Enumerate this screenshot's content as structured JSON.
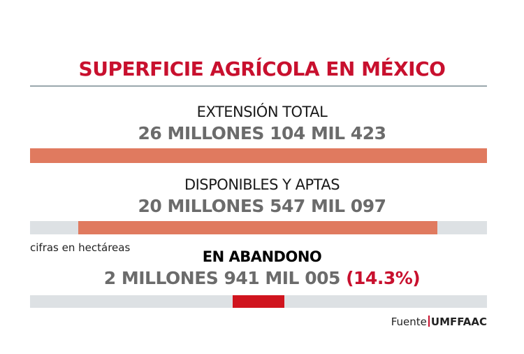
{
  "title": "SUPERFICIE AGRÍCOLA EN MÉXICO",
  "colors": {
    "title": "#c8102e",
    "bar": "#e07a5f",
    "highlight": "#d0141e",
    "track": "#dde1e4"
  },
  "chart_data": {
    "type": "bar",
    "title": "SUPERFICIE AGRÍCOLA EN MÉXICO",
    "unit_note": "cifras en hectáreas",
    "total": 26104423,
    "items": [
      {
        "label": "EXTENSIÓN TOTAL",
        "value_text": "26 MILLONES 104 MIL 423",
        "value": 26104423,
        "start_fraction": 0.0,
        "fraction": 1.0
      },
      {
        "label": "DISPONIBLES Y APTAS",
        "value_text": "20 MILLONES 547 MIL 097",
        "value": 20547097,
        "start_fraction": 0.105,
        "fraction": 0.787
      },
      {
        "label": "EN ABANDONO",
        "value_text": "2 MILLONES 941 MIL 005",
        "pct_text": "(14.3%)",
        "value": 2941005,
        "start_fraction": 0.443,
        "fraction": 0.113
      }
    ]
  },
  "source": {
    "label": "Fuente",
    "name": "UMFFAAC"
  }
}
